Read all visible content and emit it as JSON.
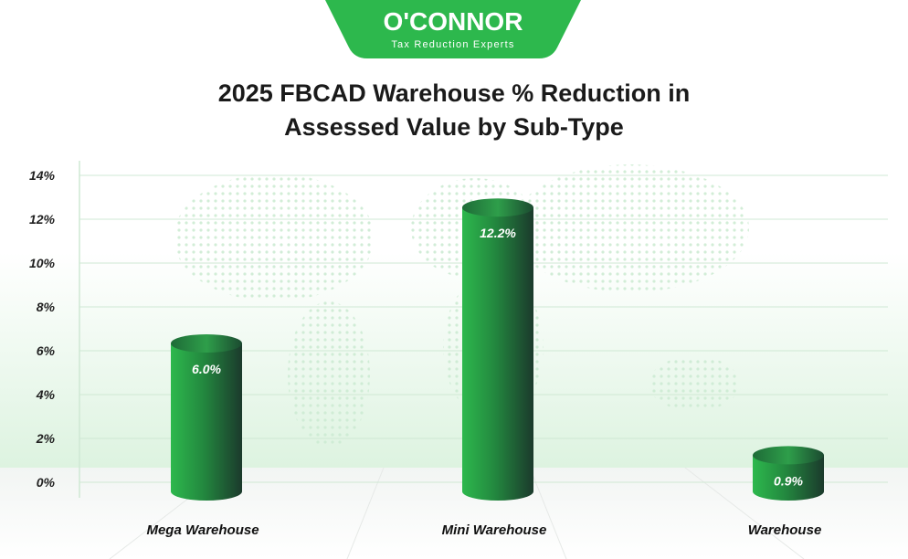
{
  "brand": {
    "name": "O'CONNOR",
    "tagline": "Tax Reduction Experts",
    "color": "#2DB84D"
  },
  "chart_data": {
    "type": "bar",
    "title_lines": [
      "2025 FBCAD Warehouse % Reduction in",
      "Assessed Value by Sub-Type"
    ],
    "categories": [
      "Mega Warehouse",
      "Mini Warehouse",
      "Warehouse"
    ],
    "values": [
      6.0,
      12.2,
      0.9
    ],
    "value_labels": [
      "6.0%",
      "12.2%",
      "0.9%"
    ],
    "y_ticks": [
      "0%",
      "2%",
      "4%",
      "6%",
      "8%",
      "10%",
      "12%",
      "14%"
    ],
    "ylim": [
      0,
      14
    ],
    "grid": true,
    "colors": {
      "bar_light": "#2DB84D",
      "bar_dark": "#1B3A2C",
      "grid": "#CFE8D4"
    }
  }
}
